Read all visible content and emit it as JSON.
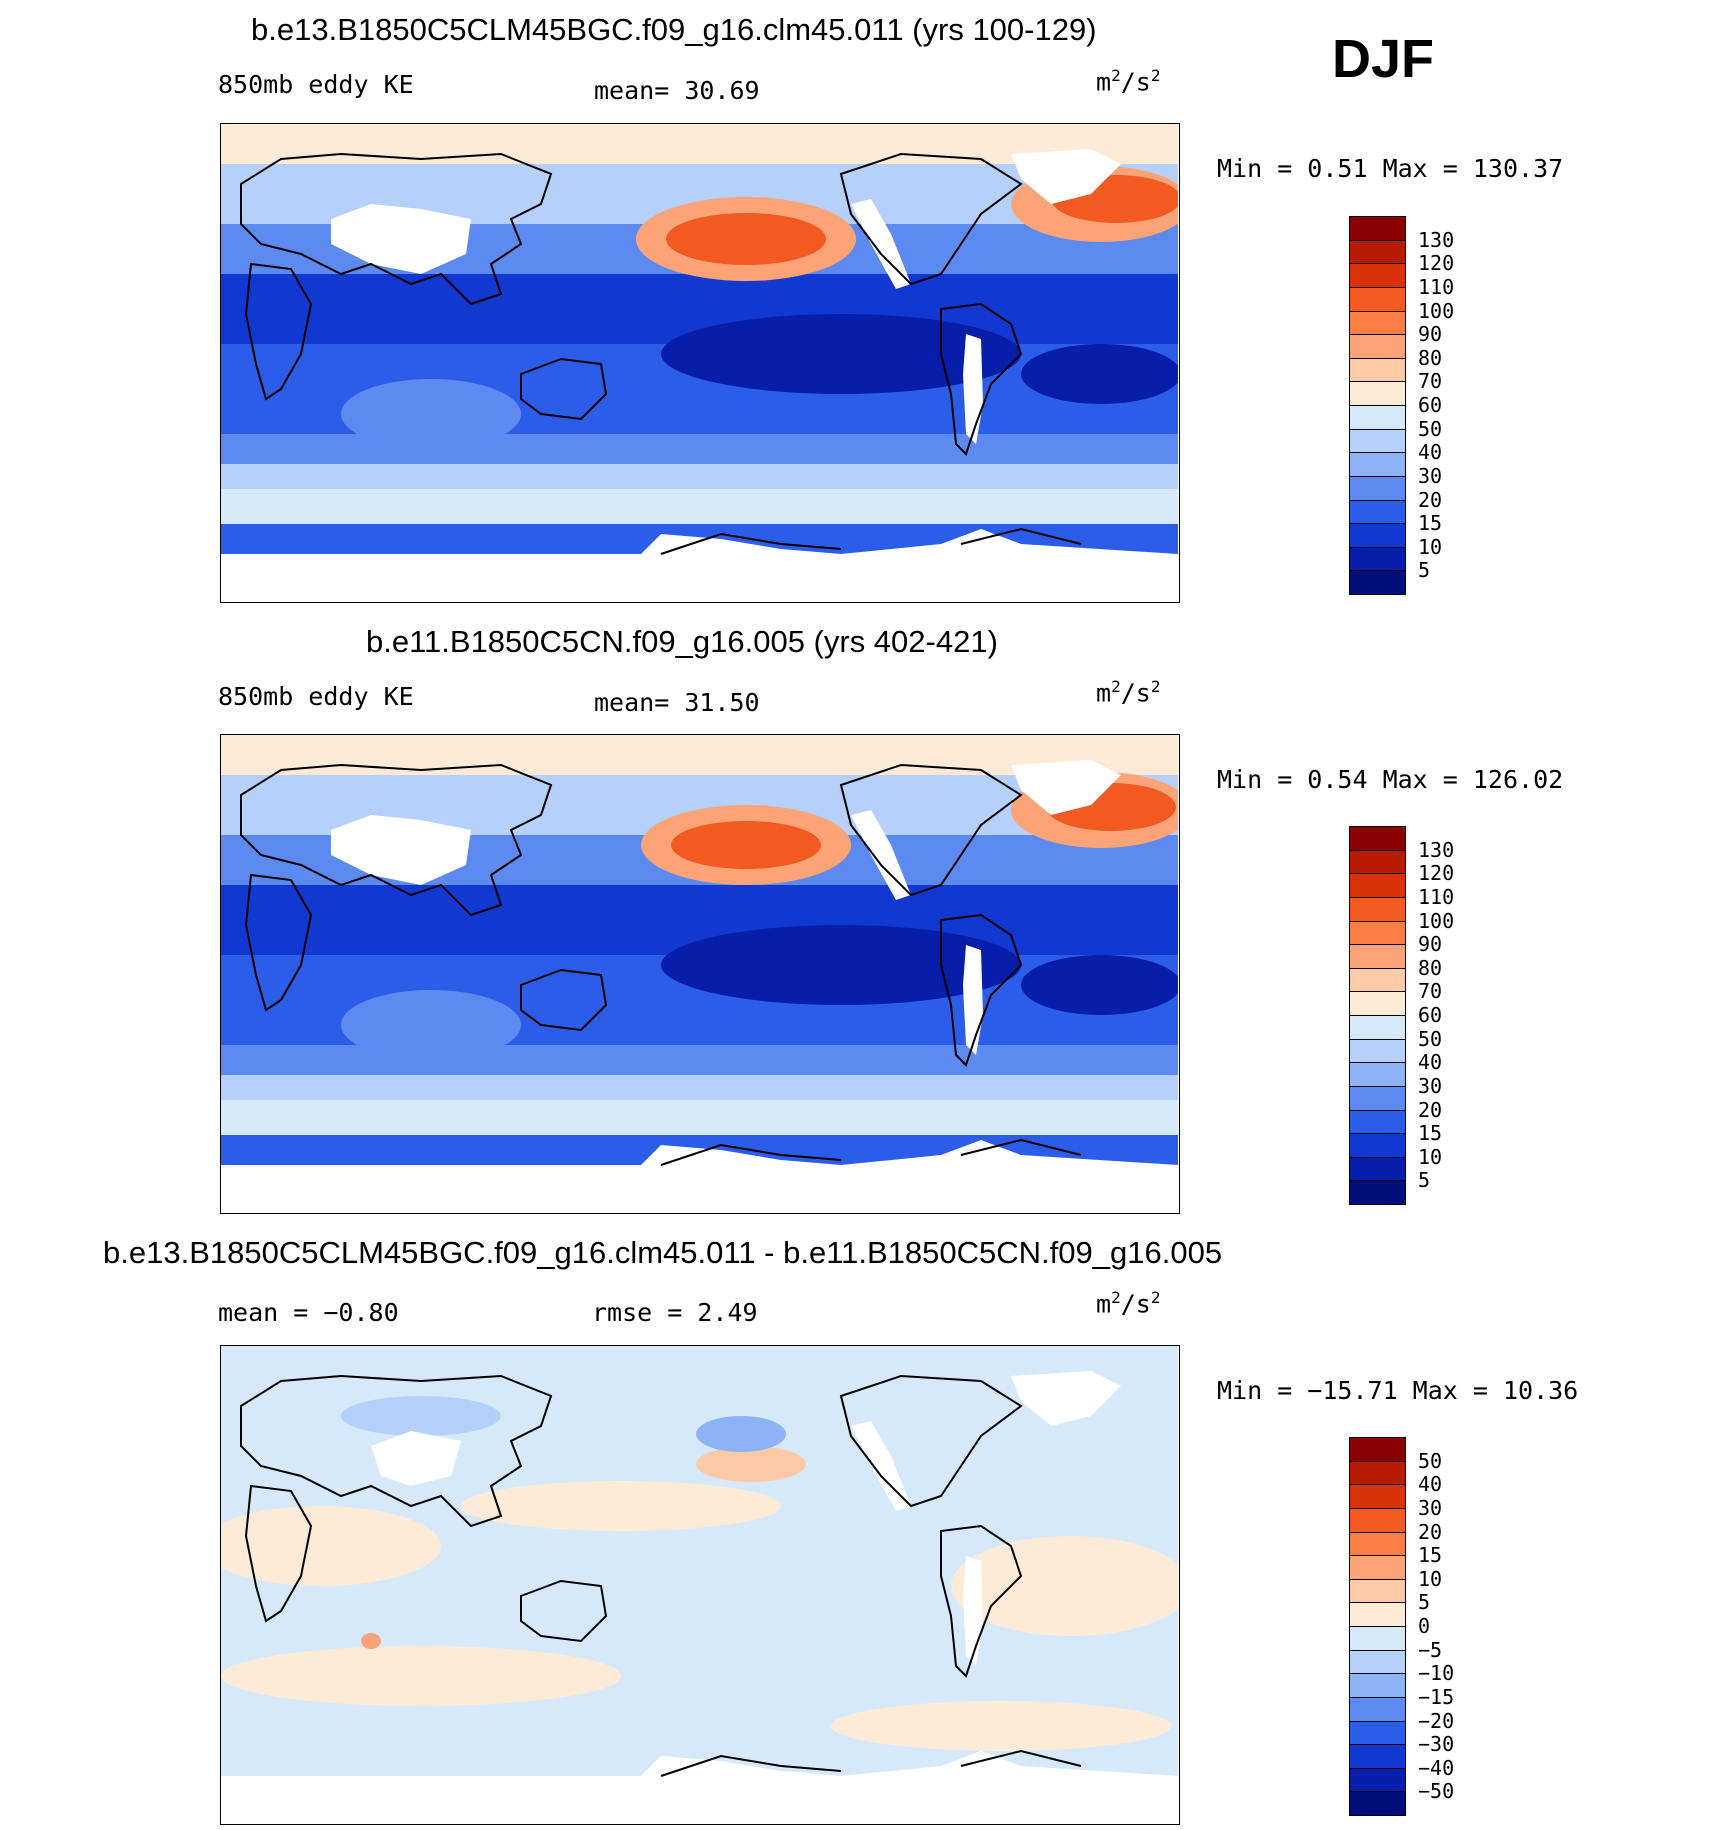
{
  "season": "DJF",
  "panels": [
    {
      "id": "panel1",
      "title": "b.e13.B1850C5CLM45BGC.f09_g16.clm45.011 (yrs 100-129)",
      "left_label": "850mb eddy KE",
      "stat_label": "mean=",
      "stat_value": "30.69",
      "units_base": "m",
      "units_sup1": "2",
      "units_mid": "/s",
      "units_sup2": "2",
      "minmax": "Min =    0.51 Max = 130.37",
      "colorbar_labels": [
        "130",
        "120",
        "110",
        "100",
        "90",
        "80",
        "70",
        "60",
        "50",
        "40",
        "30",
        "20",
        "15",
        "10",
        "5"
      ],
      "colorbar_colors": [
        "#8b0000",
        "#b81c00",
        "#d9320a",
        "#f25a21",
        "#fb7e45",
        "#fca478",
        "#fdcaa8",
        "#fdebd7",
        "#d6e9fb",
        "#b5d1fb",
        "#8db3f7",
        "#5d8af1",
        "#2c5de9",
        "#1238d2",
        "#061eaa",
        "#010f7a"
      ]
    },
    {
      "id": "panel2",
      "title": "b.e11.B1850C5CN.f09_g16.005 (yrs 402-421)",
      "left_label": "850mb eddy KE",
      "stat_label": "mean=",
      "stat_value": "31.50",
      "units_base": "m",
      "units_sup1": "2",
      "units_mid": "/s",
      "units_sup2": "2",
      "minmax": "Min =    0.54 Max = 126.02",
      "colorbar_labels": [
        "130",
        "120",
        "110",
        "100",
        "90",
        "80",
        "70",
        "60",
        "50",
        "40",
        "30",
        "20",
        "15",
        "10",
        "5"
      ],
      "colorbar_colors": [
        "#8b0000",
        "#b81c00",
        "#d9320a",
        "#f25a21",
        "#fb7e45",
        "#fca478",
        "#fdcaa8",
        "#fdebd7",
        "#d6e9fb",
        "#b5d1fb",
        "#8db3f7",
        "#5d8af1",
        "#2c5de9",
        "#1238d2",
        "#061eaa",
        "#010f7a"
      ]
    },
    {
      "id": "panel3",
      "title": "b.e13.B1850C5CLM45BGC.f09_g16.clm45.011 - b.e11.B1850C5CN.f09_g16.005",
      "left_label": "mean =",
      "left_value": "−0.80",
      "stat_label": "rmse =",
      "stat_value": "2.49",
      "units_base": "m",
      "units_sup1": "2",
      "units_mid": "/s",
      "units_sup2": "2",
      "minmax": "Min = −15.71 Max =   10.36",
      "colorbar_labels": [
        "50",
        "40",
        "30",
        "20",
        "15",
        "10",
        "5",
        "0",
        "−5",
        "−10",
        "−15",
        "−20",
        "−30",
        "−40",
        "−50"
      ],
      "colorbar_colors": [
        "#8b0000",
        "#b81c00",
        "#d9320a",
        "#f25a21",
        "#fb7e45",
        "#fca478",
        "#fdcaa8",
        "#fdebd7",
        "#d6e9fb",
        "#b5d1fb",
        "#8db3f7",
        "#5d8af1",
        "#2c5de9",
        "#1238d2",
        "#061eaa",
        "#010f7a"
      ]
    }
  ]
}
